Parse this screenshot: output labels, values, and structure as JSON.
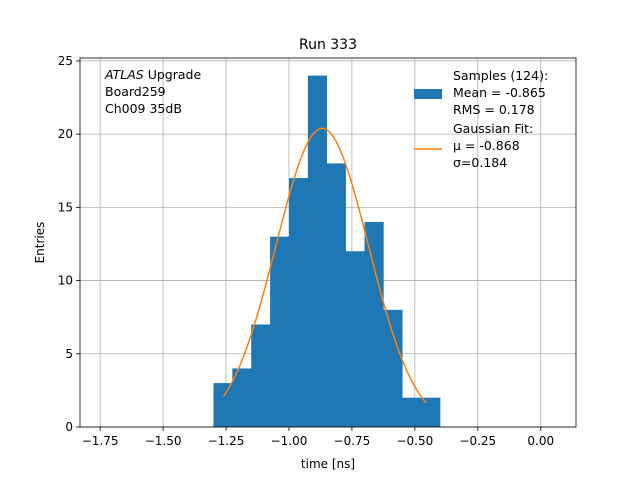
{
  "chart_data": {
    "type": "bar",
    "title": "Run 333",
    "xlabel": "time [ns]",
    "ylabel": "Entries",
    "xlim": [
      -1.83,
      0.14
    ],
    "ylim": [
      0,
      25.2
    ],
    "grid": true,
    "x_ticks": [
      -1.75,
      -1.5,
      -1.25,
      -1.0,
      -0.75,
      -0.5,
      -0.25,
      0.0
    ],
    "x_tick_labels": [
      "−1.75",
      "−1.50",
      "−1.25",
      "−1.00",
      "−0.75",
      "−0.50",
      "−0.25",
      "0.00"
    ],
    "y_ticks": [
      0,
      5,
      10,
      15,
      20,
      25
    ],
    "y_tick_labels": [
      "0",
      "5",
      "10",
      "15",
      "20",
      "25"
    ],
    "histogram": {
      "bin_edges": [
        -1.3,
        -1.225,
        -1.15,
        -1.075,
        -1.0,
        -0.925,
        -0.85,
        -0.775,
        -0.7,
        -0.625,
        -0.55,
        -0.475,
        -0.4
      ],
      "counts": [
        3,
        4,
        7,
        13,
        17,
        24,
        18,
        12,
        14,
        8,
        2,
        2
      ],
      "color": "#1f77b4"
    },
    "gaussian_fit": {
      "mu": -0.868,
      "sigma": 0.184,
      "amplitude": 20.4,
      "x_range": [
        -1.26,
        -0.455
      ],
      "color": "#ff7f0e"
    },
    "annotation_lines": [
      {
        "italic": "ATLAS",
        "rest": " Upgrade"
      },
      {
        "italic": "",
        "rest": " Board259"
      },
      {
        "italic": "",
        "rest": " Ch009 35dB"
      }
    ],
    "legend": {
      "placement": "top-right",
      "entries": [
        {
          "marker": "patch",
          "color": "#1f77b4",
          "lines": [
            "Samples (124):",
            " Mean = -0.865",
            " RMS = 0.178"
          ]
        },
        {
          "marker": "line",
          "color": "#ff7f0e",
          "lines": [
            "Gaussian Fit:",
            " μ = -0.868",
            " σ=0.184"
          ]
        }
      ]
    }
  }
}
